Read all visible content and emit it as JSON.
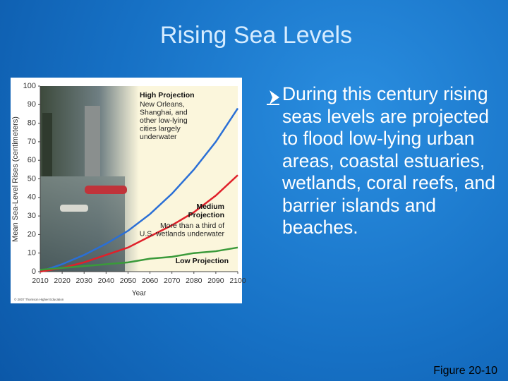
{
  "title": "Rising Sea Levels",
  "bullet": "During this century rising seas levels are projected to flood low-lying urban areas, coastal estuaries, wetlands, coral reefs, and barrier islands and beaches.",
  "caption": "Figure 20-10",
  "chart_data": {
    "type": "line",
    "x_label": "Year",
    "y_label": "Mean Sea-Level Rises (centimeters)",
    "credit": "© 2007 Thomson Higher Education",
    "x": [
      2010,
      2020,
      2030,
      2040,
      2050,
      2060,
      2070,
      2080,
      2090,
      2100
    ],
    "xlim": [
      2010,
      2100
    ],
    "xticks": [
      2010,
      2020,
      2030,
      2040,
      2050,
      2060,
      2070,
      2080,
      2090,
      2100
    ],
    "ylim": [
      0,
      100
    ],
    "yticks": [
      0,
      10,
      20,
      30,
      40,
      50,
      60,
      70,
      80,
      90,
      100
    ],
    "series": [
      {
        "name": "High Projection",
        "color": "#2a6fd6",
        "values": [
          0,
          4,
          9,
          15,
          22,
          31,
          42,
          55,
          70,
          88
        ]
      },
      {
        "name": "Medium Projection",
        "color": "#e0202a",
        "values": [
          0,
          2,
          5,
          9,
          13,
          19,
          25,
          32,
          41,
          52
        ]
      },
      {
        "name": "Low Projection",
        "color": "#3a9a3a",
        "values": [
          1,
          2,
          3,
          4,
          5,
          7,
          8,
          10,
          11,
          13
        ]
      }
    ],
    "annotations": [
      {
        "lines": [
          "New Orleans,",
          "Shanghai, and",
          "other low-lying",
          "cities largely",
          "underwater"
        ]
      },
      {
        "lines": [
          "More than a third of",
          "U.S. wetlands underwater"
        ]
      }
    ]
  }
}
